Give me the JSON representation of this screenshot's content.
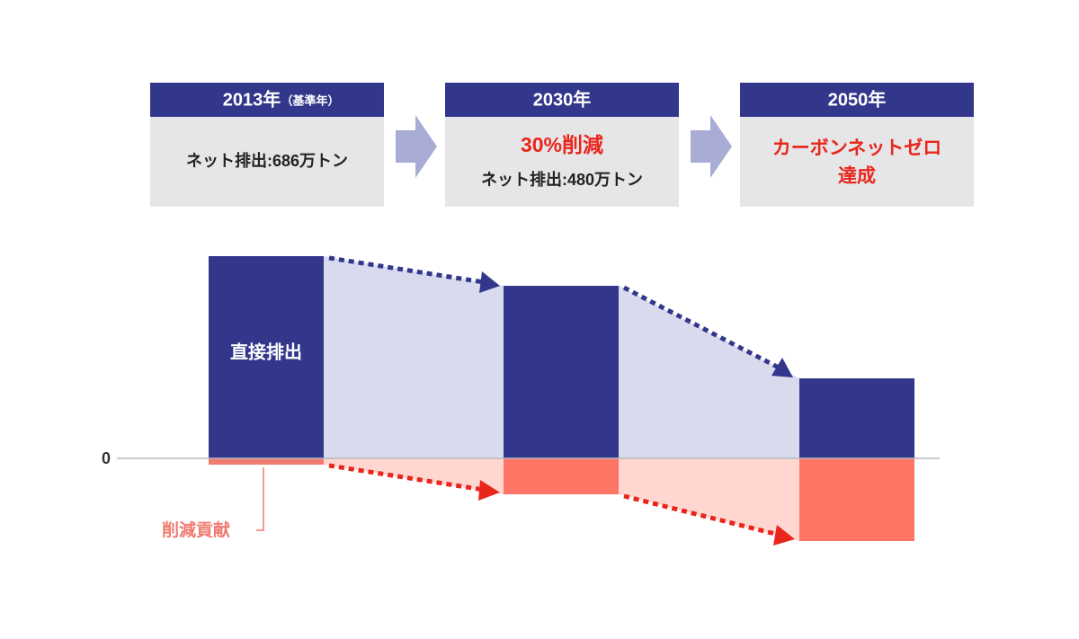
{
  "boxes": [
    {
      "year": "2013年",
      "note": "（基準年）",
      "detail": "ネット排出:686万トン"
    },
    {
      "year": "2030年",
      "headline": [
        "30%削減"
      ],
      "detail": "ネット排出:480万トン"
    },
    {
      "year": "2050年",
      "headline": [
        "カーボンネットゼロ",
        "達成"
      ]
    }
  ],
  "chart": {
    "zero": "0",
    "direct_label": "直接排出",
    "reduction_label": "削減貢献"
  }
}
